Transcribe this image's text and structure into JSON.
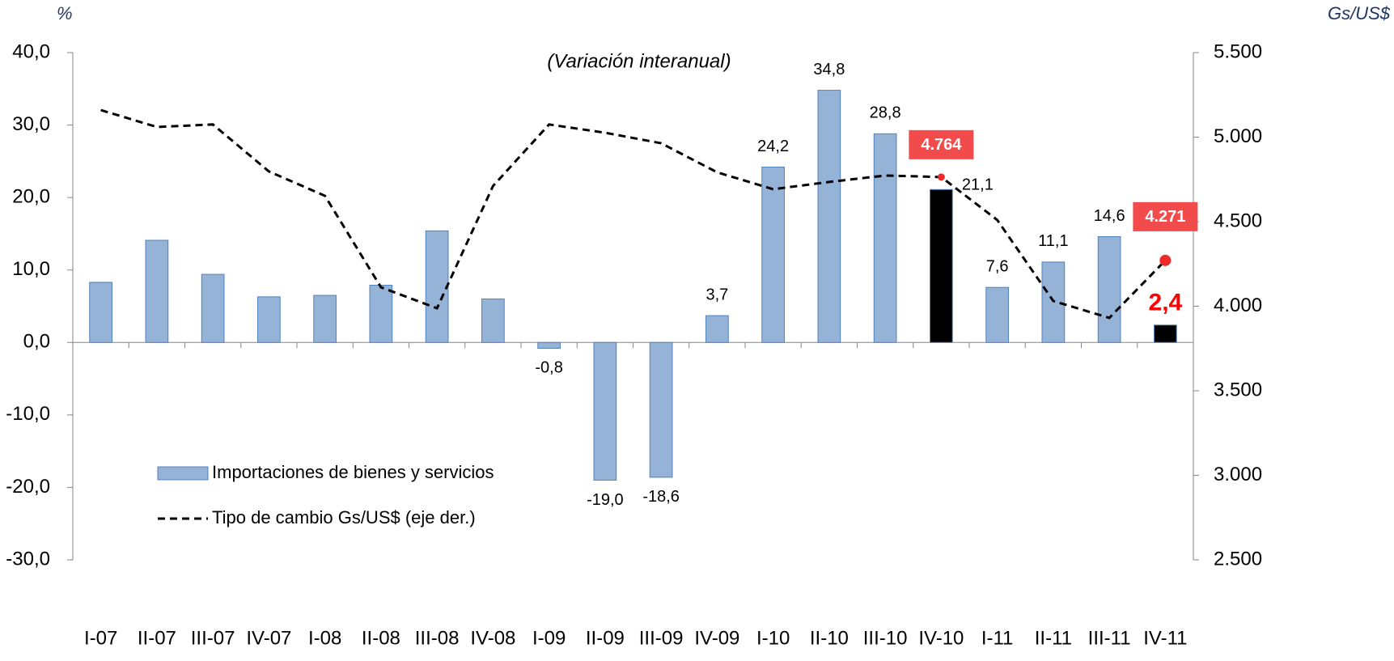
{
  "chart_data": {
    "type": "bar-line",
    "subtitle": "(Variación interanual)",
    "y_label": "%",
    "y2_label": "Gs/US$",
    "categories": [
      "I-07",
      "II-07",
      "III-07",
      "IV-07",
      "I-08",
      "II-08",
      "III-08",
      "IV-08",
      "I-09",
      "II-09",
      "III-09",
      "IV-09",
      "I-10",
      "II-10",
      "III-10",
      "IV-10",
      "I-11",
      "II-11",
      "III-11",
      "IV-11"
    ],
    "series": [
      {
        "name": "Importaciones de bienes y servicios",
        "type": "bar",
        "color": "#95b3d7",
        "colors": [
          "#95b3d7",
          "#95b3d7",
          "#95b3d7",
          "#95b3d7",
          "#95b3d7",
          "#95b3d7",
          "#95b3d7",
          "#95b3d7",
          "#95b3d7",
          "#95b3d7",
          "#95b3d7",
          "#95b3d7",
          "#95b3d7",
          "#95b3d7",
          "#95b3d7",
          "#000000",
          "#95b3d7",
          "#95b3d7",
          "#95b3d7",
          "#000000"
        ],
        "values": [
          8.3,
          14.1,
          9.4,
          6.3,
          6.5,
          7.9,
          15.4,
          6.0,
          -0.8,
          -19.0,
          -18.6,
          3.7,
          24.2,
          34.8,
          28.8,
          21.1,
          7.6,
          11.1,
          14.6,
          2.4
        ],
        "value_labels": [
          null,
          null,
          null,
          null,
          null,
          null,
          null,
          null,
          "-0,8",
          "-19,0",
          "-18,6",
          "3,7",
          "24,2",
          "34,8",
          "28,8",
          "21,1",
          "7,6",
          "11,1",
          "14,6",
          "2,4"
        ]
      },
      {
        "name": "Tipo de cambio Gs/US$ (eje der.)",
        "type": "line",
        "axis": "y2",
        "color": "#000000",
        "marker_color": "#ee2b2b",
        "values": [
          5160,
          5060,
          5075,
          4797,
          4653,
          4112,
          3988,
          4711,
          5075,
          5026,
          4964,
          4792,
          4692,
          4735,
          4773,
          4764,
          4510,
          4031,
          3931,
          4271
        ],
        "value_labels": [
          null,
          null,
          null,
          null,
          null,
          null,
          null,
          null,
          null,
          null,
          null,
          null,
          null,
          null,
          null,
          "4.764",
          null,
          null,
          null,
          "4.271"
        ]
      }
    ],
    "ylim": [
      -30,
      40
    ],
    "yticks": [
      {
        "value": -30,
        "label": "-30,0"
      },
      {
        "value": -20,
        "label": "-20,0"
      },
      {
        "value": -10,
        "label": "-10,0"
      },
      {
        "value": 0,
        "label": "0,0"
      },
      {
        "value": 10,
        "label": "10,0"
      },
      {
        "value": 20,
        "label": "20,0"
      },
      {
        "value": 30,
        "label": "30,0"
      },
      {
        "value": 40,
        "label": "40,0"
      }
    ],
    "y2lim": [
      2500,
      5500
    ],
    "y2ticks": [
      {
        "value": 2500,
        "label": "2.500"
      },
      {
        "value": 3000,
        "label": "3.000"
      },
      {
        "value": 3500,
        "label": "3.500"
      },
      {
        "value": 4000,
        "label": "4.000"
      },
      {
        "value": 4500,
        "label": "4.500"
      },
      {
        "value": 5000,
        "label": "5.000"
      },
      {
        "value": 5500,
        "label": "5.500"
      }
    ],
    "legend": "lower-left"
  }
}
